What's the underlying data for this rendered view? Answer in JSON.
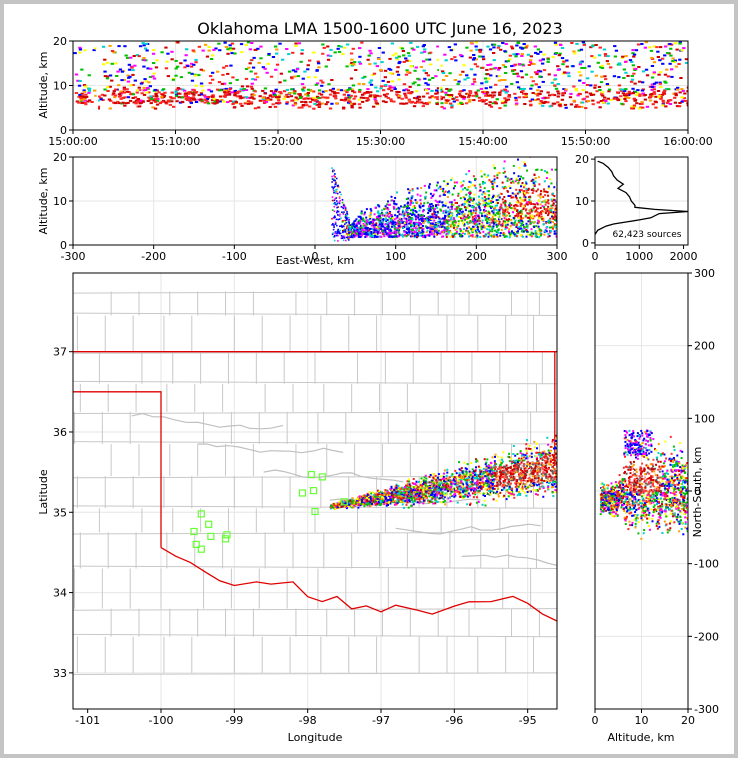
{
  "title": "Oklahoma LMA 1500-1600 UTC June 16, 2023",
  "chart_data": [
    {
      "id": "time-height",
      "type": "heatmap",
      "xlabel": "",
      "ylabel": "Altitude, km",
      "x_ticks": [
        "15:00:00",
        "15:10:00",
        "15:20:00",
        "15:30:00",
        "15:40:00",
        "15:50:00",
        "16:00:00"
      ],
      "x_range_minutes": [
        0,
        60
      ],
      "y_ticks": [
        0,
        10,
        20
      ],
      "ylim": [
        0,
        20
      ]
    },
    {
      "id": "ew-alt",
      "type": "heatmap",
      "xlabel": "East-West, km",
      "ylabel": "Altitude, km",
      "x_ticks": [
        -300,
        -200,
        -100,
        0,
        100,
        200,
        300
      ],
      "xlim": [
        -300,
        300
      ],
      "y_ticks": [
        0,
        10,
        20
      ],
      "ylim": [
        0,
        20
      ]
    },
    {
      "id": "alt-histogram",
      "type": "line",
      "annotation": "62,423 sources",
      "x_ticks": [
        0,
        1000,
        2000
      ],
      "xlim": [
        0,
        2100
      ],
      "y_ticks": [
        0,
        10,
        20
      ],
      "ylim": [
        -0.5,
        20.5
      ],
      "profile_alt_km": [
        2,
        3,
        4,
        4.5,
        5,
        5.5,
        6,
        7,
        7.5,
        8,
        8.5,
        9,
        10,
        11,
        12,
        13,
        14,
        15,
        16,
        17,
        18,
        19,
        19.5
      ],
      "profile_count": [
        0,
        60,
        250,
        420,
        700,
        1000,
        1260,
        1450,
        2100,
        1350,
        900,
        900,
        820,
        780,
        700,
        520,
        640,
        500,
        420,
        380,
        300,
        180,
        60
      ]
    },
    {
      "id": "plan-view",
      "type": "scatter",
      "xlabel": "Longitude",
      "ylabel": "Latitude",
      "x_ticks": [
        -101,
        -100,
        -99,
        -98,
        -97,
        -96,
        -95
      ],
      "xlim": [
        -101.2,
        -94.6
      ],
      "y_ticks": [
        33,
        34,
        35,
        36,
        37
      ],
      "ylim": [
        32.55,
        37.98
      ],
      "stations": [
        [
          -99.45,
          34.98
        ],
        [
          -99.35,
          34.85
        ],
        [
          -99.55,
          34.76
        ],
        [
          -99.32,
          34.7
        ],
        [
          -99.1,
          34.72
        ],
        [
          -99.12,
          34.67
        ],
        [
          -99.52,
          34.6
        ],
        [
          -99.45,
          34.54
        ],
        [
          -97.95,
          35.47
        ],
        [
          -97.8,
          35.44
        ],
        [
          -98.07,
          35.24
        ],
        [
          -97.92,
          35.27
        ],
        [
          -97.9,
          35.01
        ],
        [
          -97.5,
          35.13
        ]
      ]
    },
    {
      "id": "alt-ns",
      "type": "heatmap",
      "xlabel": "Altitude, km",
      "ylabel": "North-South, km",
      "x_ticks": [
        0,
        10,
        20
      ],
      "xlim": [
        0,
        20
      ],
      "y_ticks": [
        300,
        200,
        100,
        0,
        -100,
        -200,
        -300
      ],
      "ylim": [
        -300,
        300
      ]
    }
  ]
}
